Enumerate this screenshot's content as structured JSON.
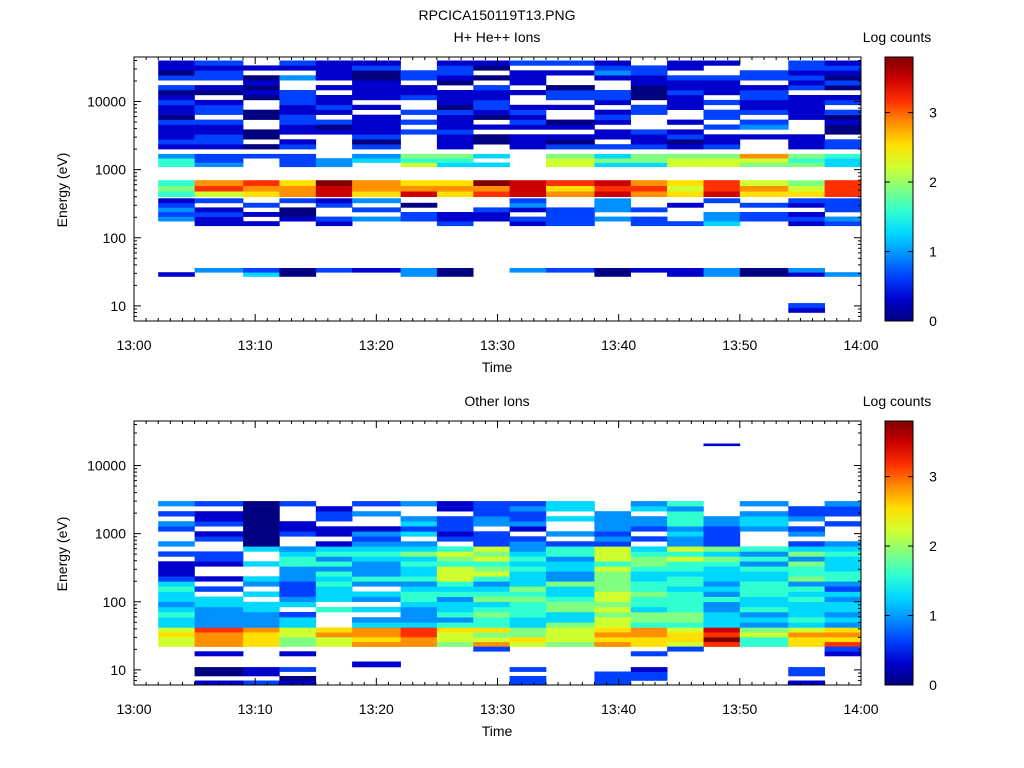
{
  "figure": {
    "title": "RPCICA150119T13.PNG"
  },
  "colors": {
    "colormap": [
      "#000080",
      "#0000cd",
      "#0040ff",
      "#0090ff",
      "#00d8ff",
      "#30ffd0",
      "#80ff80",
      "#d0ff30",
      "#ffe000",
      "#ff9000",
      "#ff3000",
      "#cc0000",
      "#800000"
    ]
  },
  "chart_data": [
    {
      "type": "heatmap",
      "title": "H+ He++ Ions",
      "xlabel": "Time",
      "ylabel": "Energy (eV)",
      "y_scale": "log",
      "ylim": [
        6,
        45000
      ],
      "x_ticks": [
        "13:00",
        "13:10",
        "13:20",
        "13:30",
        "13:40",
        "13:50",
        "14:00"
      ],
      "y_ticks": [
        "10",
        "100",
        "1000",
        "10000"
      ],
      "colorbar": {
        "label": "Log counts",
        "range": [
          0,
          3.8
        ],
        "ticks": [
          "0",
          "1",
          "2",
          "3"
        ]
      },
      "time_range": [
        "13:00",
        "14:00"
      ],
      "time_bins_start": [
        "13:02",
        "13:05",
        "13:09",
        "13:12",
        "13:15",
        "13:18",
        "13:22",
        "13:25",
        "13:28",
        "13:31",
        "13:34",
        "13:38",
        "13:41",
        "13:44",
        "13:47",
        "13:50",
        "13:54",
        "13:57"
      ],
      "bands": [
        {
          "energy_eV": [
            400,
            700
          ],
          "log_counts": [
            2.1,
            2.6,
            3.0,
            2.9,
            3.6,
            2.8,
            3.1,
            2.9,
            3.4,
            3.1,
            2.7,
            3.3,
            3.0,
            2.6,
            3.5,
            2.4,
            2.2,
            3.1
          ]
        },
        {
          "energy_eV": [
            1100,
            1700
          ],
          "log_counts": [
            1.3,
            0.6,
            0.9,
            0.8,
            0.6,
            1.0,
            1.8,
            1.5,
            0.9,
            0.8,
            1.9,
            1.6,
            1.4,
            2.1,
            2.3,
            2.4,
            1.9,
            1.2
          ]
        },
        {
          "energy_eV": [
            150,
            380
          ],
          "log_counts": [
            0.4,
            0.3,
            0.5,
            0.2,
            0.4,
            0.6,
            0.3,
            0.4,
            0.2,
            0.5,
            0.3,
            0.7,
            0.5,
            0.3,
            0.8,
            0.4,
            0.3,
            0.4
          ]
        },
        {
          "energy_eV": [
            2000,
            40000
          ],
          "log_counts": [
            0.2,
            0.3,
            0.2,
            0.4,
            0.3,
            0.2,
            0.3,
            0.2,
            0.3,
            0.3,
            0.2,
            0.4,
            0.3,
            0.2,
            0.3,
            0.4,
            0.3,
            0.2
          ]
        },
        {
          "energy_eV": [
            27,
            36
          ],
          "log_counts": [
            0.5,
            0.7,
            0.8,
            0.0,
            0.6,
            0.4,
            0.7,
            0.0,
            0.5,
            0.6,
            0.6,
            0.0,
            0.4,
            0.5,
            1.0,
            0.0,
            0.6,
            0.5
          ]
        },
        {
          "energy_eV": [
            8,
            11
          ],
          "log_counts": [
            null,
            null,
            null,
            null,
            null,
            null,
            null,
            null,
            null,
            null,
            null,
            null,
            null,
            null,
            null,
            null,
            0.4,
            null
          ]
        }
      ]
    },
    {
      "type": "heatmap",
      "title": "Other Ions",
      "xlabel": "Time",
      "ylabel": "Energy (eV)",
      "y_scale": "log",
      "ylim": [
        6,
        45000
      ],
      "x_ticks": [
        "13:00",
        "13:10",
        "13:20",
        "13:30",
        "13:40",
        "13:50",
        "14:00"
      ],
      "y_ticks": [
        "10",
        "100",
        "1000",
        "10000"
      ],
      "colorbar": {
        "label": "Log counts",
        "range": [
          0,
          3.8
        ],
        "ticks": [
          "0",
          "1",
          "2",
          "3"
        ]
      },
      "time_range": [
        "13:00",
        "14:00"
      ],
      "time_bins_start": [
        "13:02",
        "13:05",
        "13:09",
        "13:12",
        "13:15",
        "13:18",
        "13:22",
        "13:25",
        "13:28",
        "13:31",
        "13:34",
        "13:38",
        "13:41",
        "13:44",
        "13:47",
        "13:50",
        "13:54",
        "13:57"
      ],
      "bands": [
        {
          "energy_eV": [
            22,
            42
          ],
          "log_counts": [
            2.6,
            2.8,
            2.5,
            2.3,
            2.4,
            2.6,
            3.3,
            2.3,
            2.4,
            2.2,
            2.0,
            2.6,
            2.8,
            2.5,
            3.4,
            2.1,
            2.7,
            2.9
          ]
        },
        {
          "energy_eV": [
            42,
            200
          ],
          "log_counts": [
            1.3,
            0.9,
            1.0,
            0.8,
            1.1,
            1.0,
            1.2,
            1.3,
            1.4,
            1.5,
            1.6,
            1.8,
            1.6,
            1.5,
            1.2,
            1.3,
            1.4,
            1.2
          ]
        },
        {
          "energy_eV": [
            200,
            650
          ],
          "log_counts": [
            0.5,
            0.3,
            1.1,
            1.2,
            1.3,
            1.3,
            1.5,
            1.8,
            1.9,
            1.4,
            1.3,
            1.9,
            1.7,
            1.8,
            1.5,
            1.2,
            1.4,
            1.6
          ]
        },
        {
          "energy_eV": [
            650,
            3000
          ],
          "log_counts": [
            0.6,
            0.3,
            0.0,
            0.3,
            0.4,
            0.6,
            0.8,
            0.4,
            0.5,
            0.6,
            0.9,
            0.7,
            0.9,
            1.2,
            0.6,
            1.0,
            0.8,
            0.7
          ]
        },
        {
          "energy_eV": [
            16,
            22
          ],
          "log_counts": [
            null,
            0.3,
            null,
            0.2,
            null,
            null,
            null,
            null,
            0.3,
            null,
            null,
            null,
            0.5,
            0.3,
            null,
            null,
            null,
            0.3
          ]
        },
        {
          "energy_eV": [
            6,
            11
          ],
          "log_counts": [
            null,
            0.2,
            0.2,
            0.2,
            null,
            null,
            null,
            null,
            null,
            0.5,
            null,
            0.3,
            0.3,
            null,
            null,
            null,
            0.4,
            null
          ]
        },
        {
          "energy_eV": [
            11,
            16
          ],
          "log_counts": [
            null,
            null,
            null,
            null,
            0.2,
            0.2,
            null,
            null,
            null,
            null,
            null,
            null,
            null,
            0.2,
            null,
            null,
            null,
            null
          ]
        },
        {
          "energy_eV": [
            18000,
            21000
          ],
          "log_counts": [
            null,
            null,
            null,
            null,
            null,
            null,
            null,
            null,
            null,
            null,
            null,
            null,
            null,
            null,
            0.3,
            null,
            null,
            null
          ]
        }
      ]
    }
  ]
}
